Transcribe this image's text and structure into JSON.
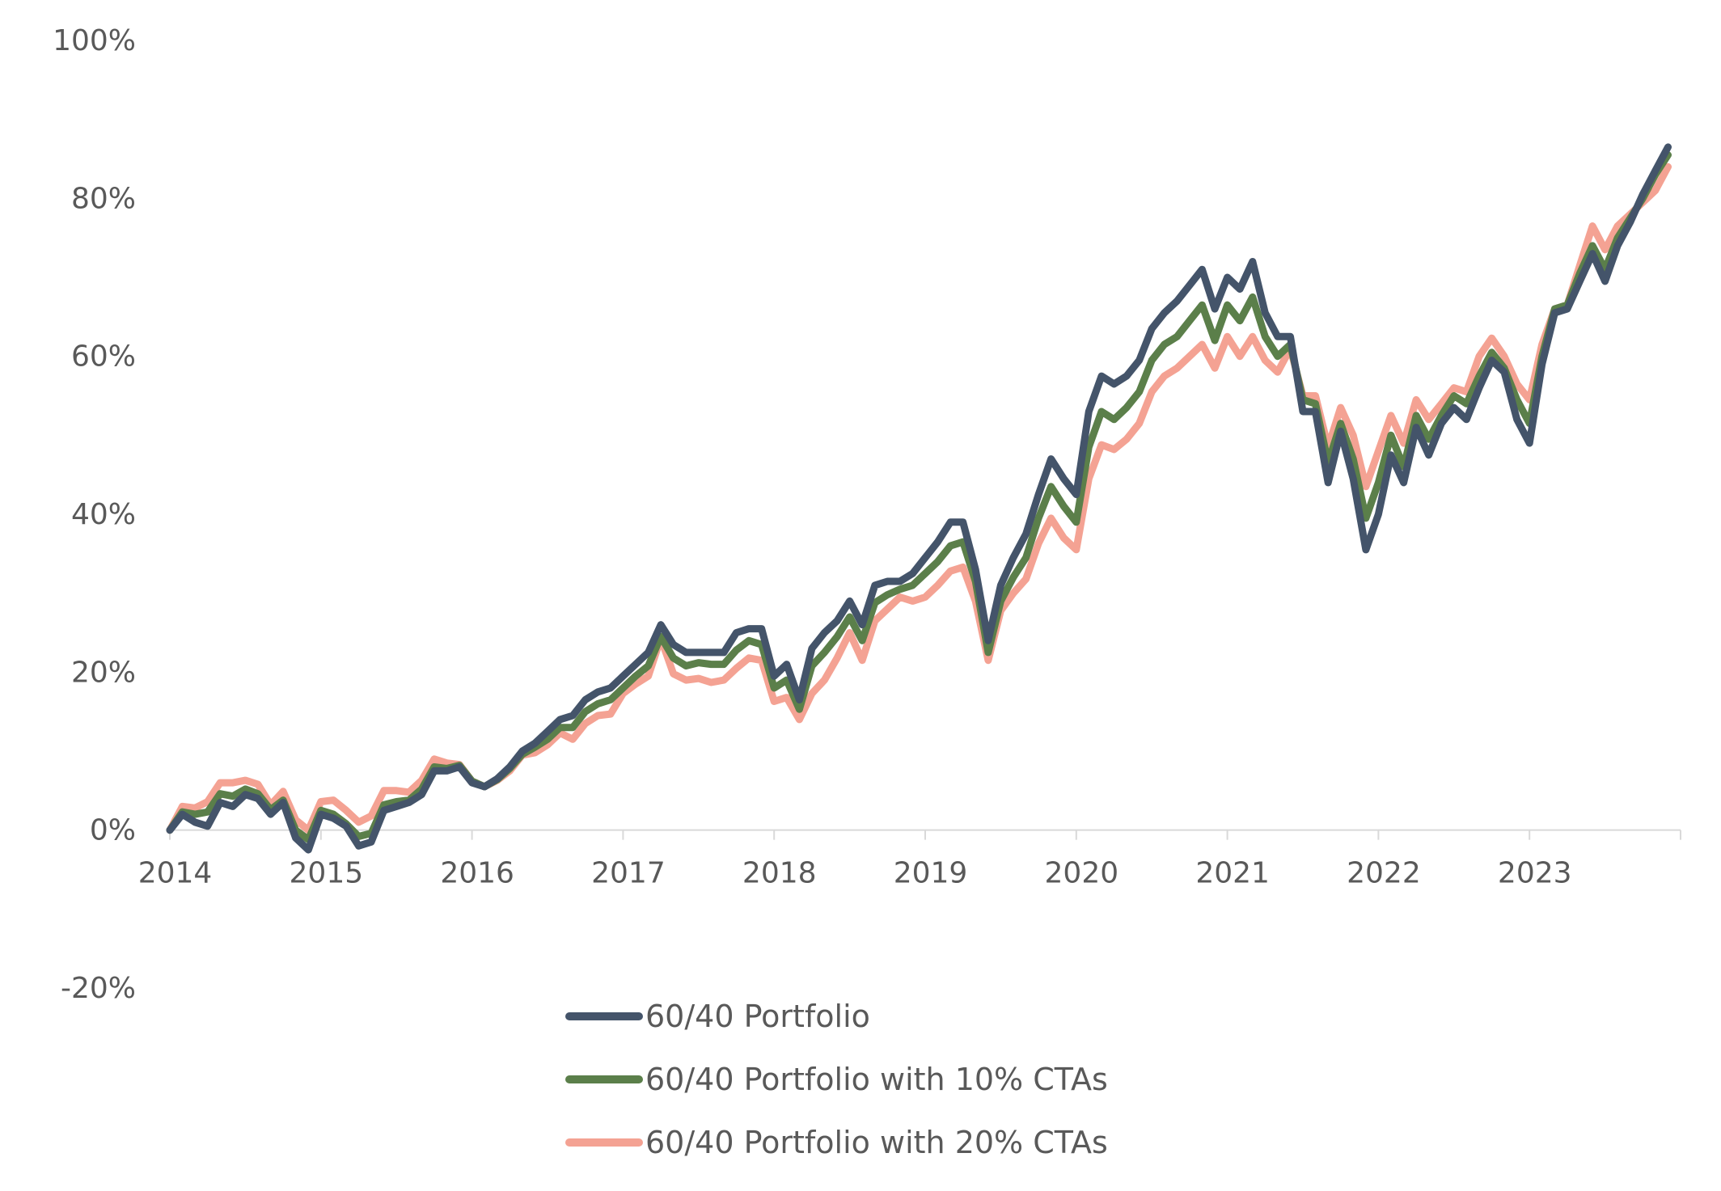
{
  "chart_data": {
    "type": "line",
    "title": "",
    "xlabel": "",
    "ylabel": "",
    "ylim": [
      -20,
      100
    ],
    "yticks": [
      100,
      80,
      60,
      40,
      20,
      0,
      -20
    ],
    "ytick_labels": [
      "100%",
      "80%",
      "60%",
      "40%",
      "20%",
      "0%",
      "-20%"
    ],
    "xlim": [
      2014.0,
      2024.0
    ],
    "xticks": [
      2014,
      2015,
      2016,
      2017,
      2018,
      2019,
      2020,
      2021,
      2022,
      2023
    ],
    "xtick_labels": [
      "2014",
      "2015",
      "2016",
      "2017",
      "2018",
      "2019",
      "2020",
      "2021",
      "2022",
      "2023"
    ],
    "grid": false,
    "legend_position": "bottom",
    "x": [
      2014.0,
      2014.083,
      2014.167,
      2014.25,
      2014.333,
      2014.417,
      2014.5,
      2014.583,
      2014.667,
      2014.75,
      2014.833,
      2014.917,
      2015.0,
      2015.083,
      2015.167,
      2015.25,
      2015.333,
      2015.417,
      2015.5,
      2015.583,
      2015.667,
      2015.75,
      2015.833,
      2015.917,
      2016.0,
      2016.083,
      2016.167,
      2016.25,
      2016.333,
      2016.417,
      2016.5,
      2016.583,
      2016.667,
      2016.75,
      2016.833,
      2016.917,
      2017.0,
      2017.083,
      2017.167,
      2017.25,
      2017.333,
      2017.417,
      2017.5,
      2017.583,
      2017.667,
      2017.75,
      2017.833,
      2017.917,
      2018.0,
      2018.083,
      2018.167,
      2018.25,
      2018.333,
      2018.417,
      2018.5,
      2018.583,
      2018.667,
      2018.75,
      2018.833,
      2018.917,
      2019.0,
      2019.083,
      2019.167,
      2019.25,
      2019.333,
      2019.417,
      2019.5,
      2019.583,
      2019.667,
      2019.75,
      2019.833,
      2019.917,
      2020.0,
      2020.083,
      2020.167,
      2020.25,
      2020.333,
      2020.417,
      2020.5,
      2020.583,
      2020.667,
      2020.75,
      2020.833,
      2020.917,
      2021.0,
      2021.083,
      2021.167,
      2021.25,
      2021.333,
      2021.417,
      2021.5,
      2021.583,
      2021.667,
      2021.75,
      2021.833,
      2021.917,
      2022.0,
      2022.083,
      2022.167,
      2022.25,
      2022.333,
      2022.417,
      2022.5,
      2022.583,
      2022.667,
      2022.75,
      2022.833,
      2022.917,
      2023.0,
      2023.083,
      2023.167,
      2023.25,
      2023.333,
      2023.417,
      2023.5,
      2023.583,
      2023.667,
      2023.75,
      2023.833,
      2023.917
    ],
    "series": [
      {
        "name": "60/40 Portfolio",
        "color": "#44546A",
        "values": [
          0.0,
          2.0,
          1.0,
          0.5,
          3.5,
          3.0,
          4.5,
          4.0,
          2.0,
          3.5,
          -1.0,
          -2.5,
          2.0,
          1.5,
          0.5,
          -2.0,
          -1.5,
          2.5,
          3.0,
          3.5,
          4.5,
          7.5,
          7.5,
          8.0,
          6.0,
          5.5,
          6.5,
          8.0,
          10.0,
          11.0,
          12.5,
          14.0,
          14.5,
          16.5,
          17.5,
          18.0,
          19.5,
          21.0,
          22.5,
          26.0,
          23.5,
          22.5,
          22.5,
          22.5,
          22.5,
          25.0,
          25.5,
          25.5,
          19.5,
          21.0,
          16.5,
          23.0,
          25.0,
          26.5,
          29.0,
          26.0,
          31.0,
          31.5,
          31.5,
          32.5,
          34.5,
          36.5,
          39.0,
          39.0,
          33.0,
          24.0,
          31.0,
          34.5,
          37.5,
          42.5,
          47.0,
          44.5,
          42.5,
          53.0,
          57.5,
          56.5,
          57.5,
          59.5,
          63.5,
          65.5,
          67.0,
          69.0,
          71.0,
          66.0,
          70.0,
          68.5,
          72.0,
          65.5,
          62.5,
          62.5,
          53.0,
          53.0,
          44.0,
          50.5,
          44.5,
          35.5,
          40.0,
          47.5,
          44.0,
          51.0,
          47.5,
          51.5,
          53.5,
          52.0,
          56.0,
          59.5,
          58.0,
          52.0,
          49.0,
          59.0,
          65.5,
          66.0,
          69.5,
          73.0,
          69.5,
          74.0,
          77.0,
          80.5,
          83.5,
          86.5
        ]
      },
      {
        "name": "60/40 Portfolio with 10% CTAs",
        "color": "#5B7F4A",
        "values": [
          0.0,
          2.3,
          2.0,
          2.3,
          4.6,
          4.3,
          5.2,
          4.6,
          2.6,
          3.8,
          0.0,
          -1.2,
          2.5,
          2.0,
          0.8,
          -0.8,
          -0.4,
          3.2,
          3.6,
          3.8,
          5.2,
          8.0,
          7.8,
          8.2,
          6.2,
          5.5,
          6.4,
          7.8,
          9.6,
          10.5,
          11.5,
          13.0,
          13.0,
          15.0,
          16.0,
          16.5,
          18.0,
          19.5,
          20.8,
          24.5,
          21.8,
          20.8,
          21.2,
          21.0,
          21.0,
          22.8,
          24.0,
          23.5,
          18.0,
          19.0,
          15.3,
          20.8,
          22.5,
          24.5,
          27.0,
          24.0,
          28.8,
          29.8,
          30.5,
          31.0,
          32.5,
          34.0,
          36.0,
          36.5,
          31.5,
          22.5,
          29.0,
          32.0,
          34.5,
          39.5,
          43.5,
          41.0,
          39.0,
          48.5,
          53.0,
          52.0,
          53.5,
          55.5,
          59.5,
          61.5,
          62.5,
          64.5,
          66.5,
          62.0,
          66.5,
          64.5,
          67.5,
          62.5,
          60.0,
          61.5,
          54.5,
          54.0,
          46.5,
          51.5,
          47.0,
          39.5,
          44.0,
          50.0,
          46.0,
          52.5,
          49.5,
          52.5,
          55.0,
          54.0,
          57.5,
          60.5,
          58.5,
          54.5,
          51.5,
          60.0,
          66.0,
          66.5,
          70.5,
          74.0,
          71.0,
          75.0,
          77.5,
          80.0,
          83.0,
          85.5
        ]
      },
      {
        "name": "60/40 Portfolio with 20% CTAs",
        "color": "#F4A293",
        "values": [
          0.0,
          3.0,
          2.8,
          3.6,
          6.0,
          6.0,
          6.3,
          5.8,
          3.2,
          4.9,
          1.3,
          0.0,
          3.6,
          3.8,
          2.5,
          1.0,
          1.8,
          5.0,
          5.0,
          4.8,
          6.3,
          9.0,
          8.5,
          8.3,
          6.2,
          5.5,
          6.3,
          7.5,
          9.5,
          9.8,
          10.8,
          12.3,
          11.5,
          13.5,
          14.5,
          14.7,
          17.3,
          18.5,
          19.5,
          24.3,
          19.8,
          19.0,
          19.2,
          18.7,
          19.0,
          20.5,
          21.8,
          21.5,
          16.3,
          16.8,
          14.0,
          17.3,
          19.0,
          21.8,
          25.0,
          21.5,
          26.5,
          28.0,
          29.5,
          29.0,
          29.5,
          31.0,
          32.8,
          33.3,
          29.0,
          21.5,
          27.8,
          30.0,
          31.8,
          36.3,
          39.5,
          37.0,
          35.5,
          44.5,
          48.8,
          48.2,
          49.5,
          51.5,
          55.5,
          57.5,
          58.5,
          60.0,
          61.5,
          58.5,
          62.5,
          60.0,
          62.5,
          59.5,
          58.0,
          61.0,
          55.0,
          55.0,
          48.5,
          53.5,
          50.0,
          43.5,
          48.0,
          52.5,
          49.0,
          54.5,
          52.0,
          54.0,
          56.0,
          55.5,
          60.0,
          62.3,
          60.0,
          56.5,
          54.5,
          61.5,
          66.0,
          66.5,
          71.5,
          76.5,
          73.5,
          76.5,
          78.0,
          79.5,
          81.0,
          84.0
        ]
      }
    ]
  }
}
